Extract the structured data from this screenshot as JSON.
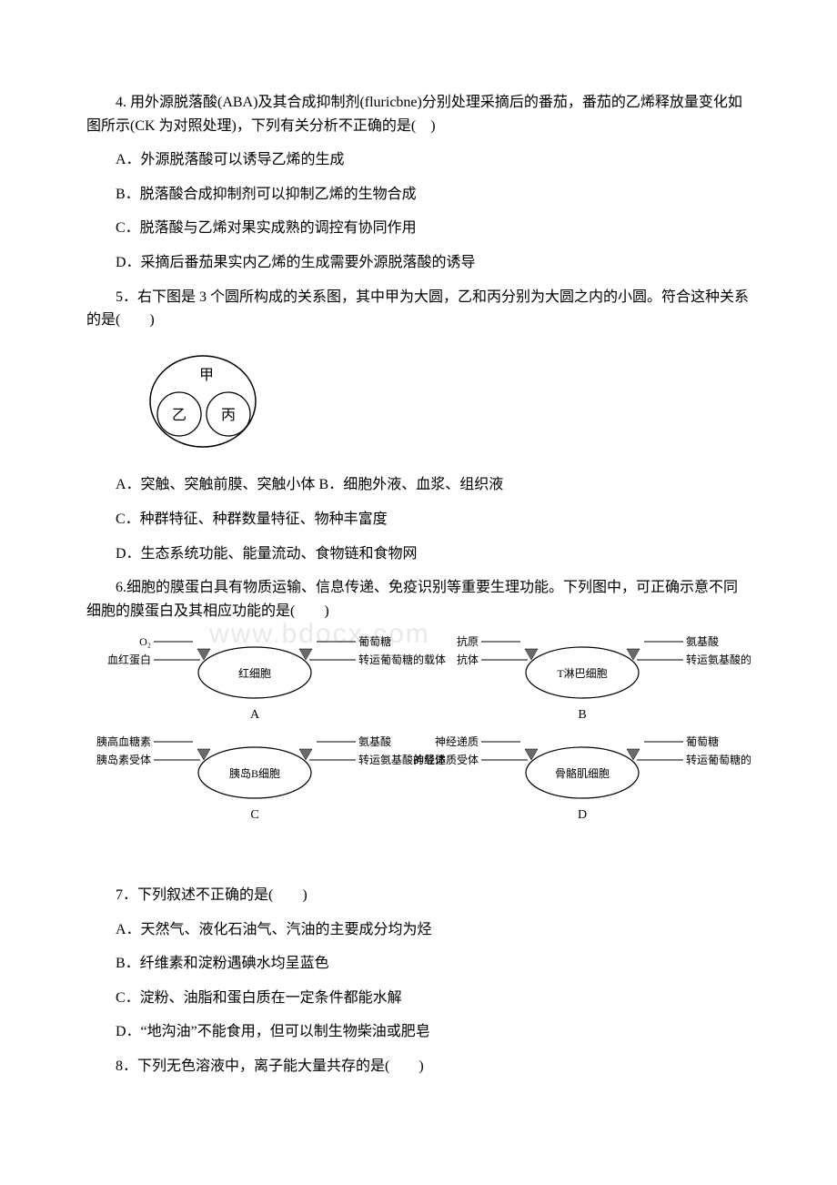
{
  "watermark": "www.bdocx.com",
  "q4": {
    "stem": "4. 用外源脱落酸(ABA)及其合成抑制剂(fluricbne)分别处理采摘后的番茄，番茄的乙烯释放量变化如图所示(CK 为对照处理)，下列有关分析不正确的是(　)",
    "A": "A．外源脱落酸可以诱导乙烯的生成",
    "B": "B．脱落酸合成抑制剂可以抑制乙烯的生物合成",
    "C": "C．脱落酸与乙烯对果实成熟的调控有协同作用",
    "D": "D．采摘后番茄果实内乙烯的生成需要外源脱落酸的诱导"
  },
  "q5": {
    "stem": "5．右下图是 3 个圆所构成的关系图，其中甲为大圆，乙和丙分别为大圆之内的小圆。符合这种关系的是(　　)",
    "venn": {
      "big_label": "甲",
      "left_label": "乙",
      "right_label": "丙",
      "stroke": "#000000",
      "fill": "#ffffff",
      "big_r": 50,
      "small_r": 24,
      "fontsize": 16
    },
    "AB": "A．突触、突触前膜、突触小体 B．细胞外液、血浆、组织液",
    "C": "C．种群特征、种群数量特征、物种丰富度",
    "D": "D．生态系统功能、能量流动、食物链和食物网"
  },
  "q6": {
    "stem": "6.细胞的膜蛋白具有物质运输、信息传递、免疫识别等重要生理功能。下列图中，可正确示意不同细胞的膜蛋白及其相应功能的是(　　)",
    "diagram": {
      "stroke": "#000000",
      "label_fontsize": 12,
      "title_fontsize": 14,
      "cells": [
        {
          "panel": "A",
          "cell_label": "红细胞",
          "left_top": "O₂",
          "left_bottom": "血红蛋白",
          "right_top": "葡萄糖",
          "right_bottom": "转运葡萄糖的载体"
        },
        {
          "panel": "B",
          "cell_label": "T淋巴细胞",
          "left_top": "抗原",
          "left_bottom": "抗体",
          "right_top": "氨基酸",
          "right_bottom": "转运氨基酸的载体"
        },
        {
          "panel": "C",
          "cell_label": "胰岛B细胞",
          "left_top": "胰高血糖素",
          "left_bottom": "胰岛素受体",
          "right_top": "氨基酸",
          "right_bottom": "转运氨基酸的载体"
        },
        {
          "panel": "D",
          "cell_label": "骨骼肌细胞",
          "left_top": "神经递质",
          "left_bottom": "神经递质受体",
          "right_top": "葡萄糖",
          "right_bottom": "转运葡萄糖的载体"
        }
      ]
    }
  },
  "q7": {
    "stem": "7．下列叙述不正确的是(　　)",
    "A": "A．天然气、液化石油气、汽油的主要成分均为烃",
    "B": "B．纤维素和淀粉遇碘水均呈蓝色",
    "C": "C．淀粉、油脂和蛋白质在一定条件都能水解",
    "D": "D．“地沟油”不能食用，但可以制生物柴油或肥皂"
  },
  "q8": {
    "stem": "8．下列无色溶液中，离子能大量共存的是(　　)"
  }
}
